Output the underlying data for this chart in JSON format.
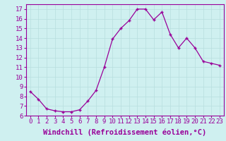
{
  "x": [
    0,
    1,
    2,
    3,
    4,
    5,
    6,
    7,
    8,
    9,
    10,
    11,
    12,
    13,
    14,
    15,
    16,
    17,
    18,
    19,
    20,
    21,
    22,
    23
  ],
  "y": [
    8.5,
    7.7,
    6.7,
    6.5,
    6.4,
    6.4,
    6.6,
    7.5,
    8.6,
    11.0,
    13.9,
    15.0,
    15.8,
    17.0,
    17.0,
    15.9,
    16.7,
    14.4,
    13.0,
    14.0,
    13.0,
    11.6,
    11.4,
    11.2
  ],
  "line_color": "#990099",
  "marker": "+",
  "xlabel": "Windchill (Refroidissement éolien,°C)",
  "ylim": [
    6,
    17.5
  ],
  "xlim": [
    -0.5,
    23.5
  ],
  "yticks": [
    6,
    7,
    8,
    9,
    10,
    11,
    12,
    13,
    14,
    15,
    16,
    17
  ],
  "xticks": [
    0,
    1,
    2,
    3,
    4,
    5,
    6,
    7,
    8,
    9,
    10,
    11,
    12,
    13,
    14,
    15,
    16,
    17,
    18,
    19,
    20,
    21,
    22,
    23
  ],
  "xtick_labels": [
    "0",
    "1",
    "2",
    "3",
    "4",
    "5",
    "6",
    "7",
    "8",
    "9",
    "10",
    "11",
    "12",
    "13",
    "14",
    "15",
    "16",
    "17",
    "18",
    "19",
    "20",
    "21",
    "22",
    "23"
  ],
  "background_color": "#cff0f0",
  "grid_color": "#b8dede",
  "tick_label_fontsize": 6.5,
  "xlabel_fontsize": 7.5
}
